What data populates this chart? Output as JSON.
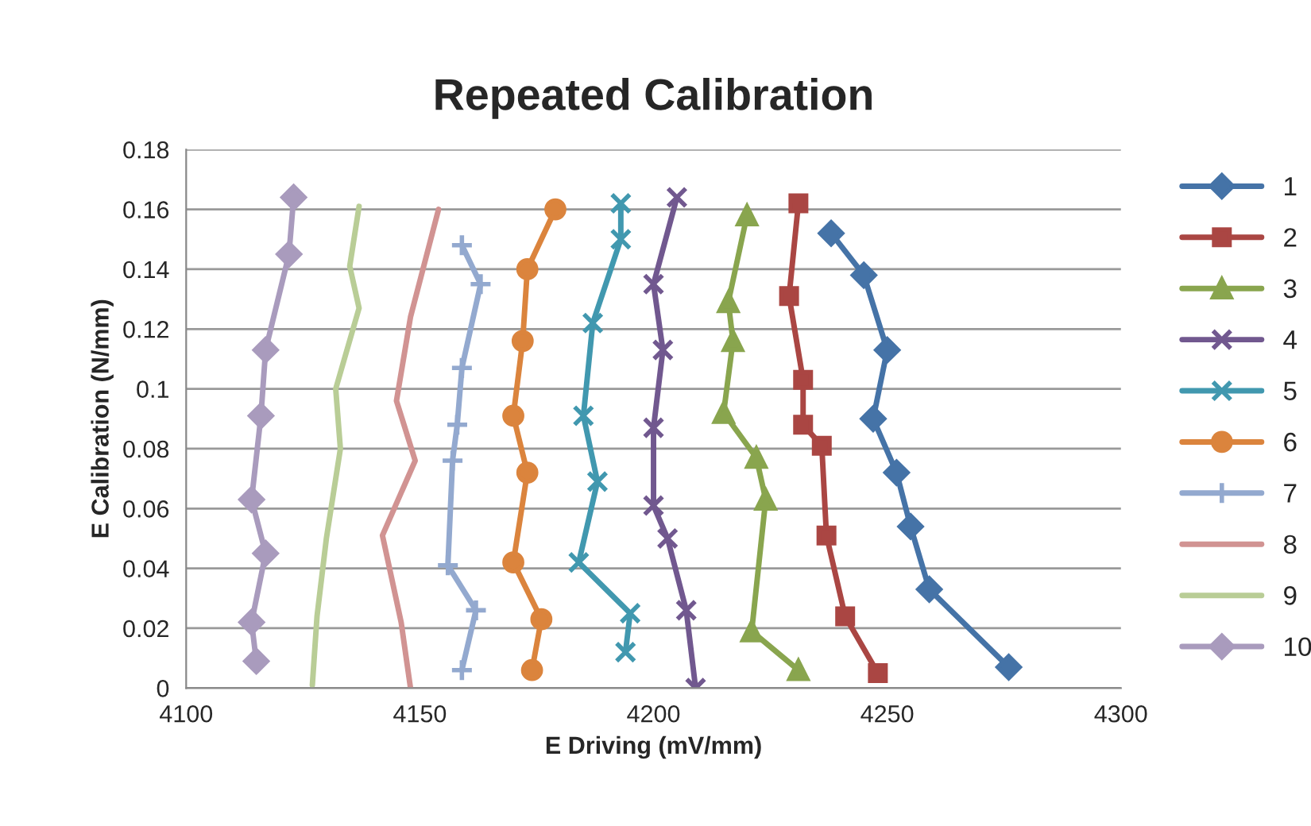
{
  "chart_data": {
    "type": "line",
    "title": "Repeated Calibration",
    "xlabel": "E Driving (mV/mm)",
    "ylabel": "E Calibration (N/mm)",
    "xlim": [
      4100,
      4300
    ],
    "xticks": [
      4100,
      4150,
      4200,
      4250,
      4300
    ],
    "ylim": [
      0,
      0.18
    ],
    "yticks": [
      0,
      0.02,
      0.04,
      0.06,
      0.08,
      0.1,
      0.12,
      0.14,
      0.16,
      0.18
    ],
    "grid": "y",
    "legend": "right",
    "series": [
      {
        "name": "1",
        "color": "#4573a7",
        "marker": "diamond",
        "x": [
          4238,
          4245,
          4250,
          4247,
          4252,
          4255,
          4259,
          4276
        ],
        "values": [
          0.152,
          0.138,
          0.113,
          0.09,
          0.072,
          0.054,
          0.033,
          0.007
        ]
      },
      {
        "name": "2",
        "color": "#aa4643",
        "marker": "square",
        "x": [
          4231,
          4229,
          4232,
          4232,
          4236,
          4237,
          4241,
          4248
        ],
        "values": [
          0.162,
          0.131,
          0.103,
          0.088,
          0.081,
          0.051,
          0.024,
          0.005
        ]
      },
      {
        "name": "3",
        "color": "#89a54e",
        "marker": "triangle",
        "x": [
          4220,
          4216,
          4217,
          4215,
          4222,
          4224,
          4221,
          4231
        ],
        "values": [
          0.158,
          0.129,
          0.116,
          0.092,
          0.077,
          0.063,
          0.019,
          0.006
        ]
      },
      {
        "name": "4",
        "color": "#71588f",
        "marker": "cross",
        "x": [
          4205,
          4200,
          4202,
          4200,
          4200,
          4203,
          4207,
          4209
        ],
        "values": [
          0.164,
          0.135,
          0.113,
          0.087,
          0.061,
          0.05,
          0.026,
          0
        ]
      },
      {
        "name": "5",
        "color": "#4198af",
        "marker": "cross",
        "x": [
          4193,
          4193,
          4187,
          4185,
          4188,
          4184,
          4195,
          4194
        ],
        "values": [
          0.162,
          0.15,
          0.122,
          0.091,
          0.069,
          0.042,
          0.025,
          0.012
        ]
      },
      {
        "name": "6",
        "color": "#db843d",
        "marker": "circle",
        "x": [
          4179,
          4173,
          4172,
          4170,
          4173,
          4170,
          4176,
          4174
        ],
        "values": [
          0.16,
          0.14,
          0.116,
          0.091,
          0.072,
          0.042,
          0.023,
          0.006
        ]
      },
      {
        "name": "7",
        "color": "#93a9cf",
        "marker": "plus",
        "x": [
          4159,
          4163,
          4159,
          4158,
          4157,
          4156,
          4162,
          4159
        ],
        "values": [
          0.148,
          0.135,
          0.107,
          0.088,
          0.076,
          0.041,
          0.026,
          0.006
        ]
      },
      {
        "name": "8",
        "color": "#d19392",
        "marker": "none",
        "x": [
          4154,
          4148,
          4145,
          4149,
          4142,
          4146,
          4148
        ],
        "values": [
          0.16,
          0.124,
          0.096,
          0.076,
          0.051,
          0.022,
          0
        ]
      },
      {
        "name": "9",
        "color": "#b9cd96",
        "marker": "none",
        "x": [
          4137,
          4135,
          4137,
          4132,
          4133,
          4130,
          4128,
          4127
        ],
        "values": [
          0.161,
          0.141,
          0.127,
          0.1,
          0.08,
          0.05,
          0.024,
          0.001
        ]
      },
      {
        "name": "10",
        "color": "#a99bbd",
        "marker": "diamond",
        "x": [
          4123,
          4122,
          4117,
          4116,
          4114,
          4117,
          4114,
          4115
        ],
        "values": [
          0.164,
          0.145,
          0.113,
          0.091,
          0.063,
          0.045,
          0.022,
          0.009
        ]
      }
    ]
  }
}
